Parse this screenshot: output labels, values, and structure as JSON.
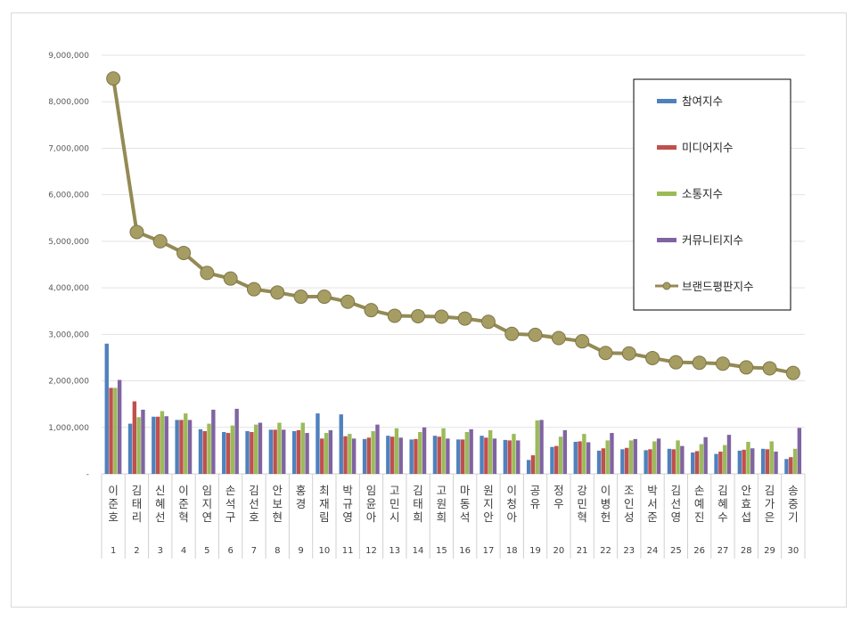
{
  "chart_data": {
    "type": "bar+line",
    "categories": [
      "이준호",
      "김태리",
      "신혜선",
      "이준혁",
      "임지연",
      "손석구",
      "김선호",
      "안보현",
      "홍경",
      "최재림",
      "박규영",
      "임윤아",
      "고민시",
      "김태희",
      "고원희",
      "마동석",
      "원지안",
      "이청아",
      "공유",
      "정우",
      "강민혁",
      "이병헌",
      "조인성",
      "박서준",
      "김선영",
      "손예진",
      "김혜수",
      "안효섭",
      "김가은",
      "송중기"
    ],
    "ranks": [
      "1",
      "2",
      "3",
      "4",
      "5",
      "6",
      "7",
      "8",
      "9",
      "10",
      "11",
      "12",
      "13",
      "14",
      "15",
      "16",
      "17",
      "18",
      "19",
      "20",
      "21",
      "22",
      "23",
      "24",
      "25",
      "26",
      "27",
      "28",
      "29",
      "30"
    ],
    "y_ticks": [
      "-",
      "1,000,000",
      "2,000,000",
      "3,000,000",
      "4,000,000",
      "5,000,000",
      "6,000,000",
      "7,000,000",
      "8,000,000",
      "9,000,000"
    ],
    "ylim": [
      0,
      9000000
    ],
    "series": [
      {
        "name": "참여지수",
        "kind": "bar",
        "color": "#4f81bd",
        "values": [
          2800000,
          1080000,
          1230000,
          1160000,
          960000,
          900000,
          920000,
          950000,
          920000,
          1300000,
          1280000,
          750000,
          820000,
          740000,
          820000,
          740000,
          820000,
          730000,
          300000,
          580000,
          690000,
          500000,
          530000,
          510000,
          540000,
          460000,
          430000,
          500000,
          540000,
          320000
        ]
      },
      {
        "name": "미디어지수",
        "kind": "bar",
        "color": "#c0504d",
        "values": [
          1850000,
          1560000,
          1230000,
          1160000,
          920000,
          880000,
          900000,
          950000,
          940000,
          760000,
          810000,
          780000,
          800000,
          750000,
          800000,
          740000,
          780000,
          720000,
          400000,
          600000,
          700000,
          550000,
          560000,
          530000,
          530000,
          490000,
          480000,
          520000,
          530000,
          360000
        ]
      },
      {
        "name": "소통지수",
        "kind": "bar",
        "color": "#9bbb59",
        "values": [
          1850000,
          1220000,
          1350000,
          1300000,
          1080000,
          1040000,
          1060000,
          1100000,
          1100000,
          880000,
          860000,
          920000,
          980000,
          900000,
          980000,
          900000,
          940000,
          860000,
          1150000,
          800000,
          860000,
          720000,
          720000,
          700000,
          720000,
          640000,
          620000,
          690000,
          700000,
          540000
        ]
      },
      {
        "name": "커뮤니티지수",
        "kind": "bar",
        "color": "#8064a2",
        "values": [
          2020000,
          1380000,
          1240000,
          1160000,
          1380000,
          1400000,
          1100000,
          950000,
          880000,
          940000,
          760000,
          1060000,
          780000,
          1000000,
          760000,
          960000,
          760000,
          720000,
          1160000,
          940000,
          680000,
          880000,
          750000,
          760000,
          600000,
          790000,
          840000,
          550000,
          480000,
          990000
        ]
      },
      {
        "name": "브랜드평판지수",
        "kind": "line",
        "color": "#948a54",
        "values": [
          8500000,
          5200000,
          5000000,
          4750000,
          4320000,
          4200000,
          3970000,
          3900000,
          3810000,
          3810000,
          3700000,
          3520000,
          3400000,
          3390000,
          3380000,
          3340000,
          3270000,
          3010000,
          2990000,
          2920000,
          2850000,
          2600000,
          2590000,
          2490000,
          2400000,
          2390000,
          2370000,
          2290000,
          2270000,
          2170000
        ]
      }
    ],
    "legend_position": "top-right inside plot",
    "grid": true
  }
}
